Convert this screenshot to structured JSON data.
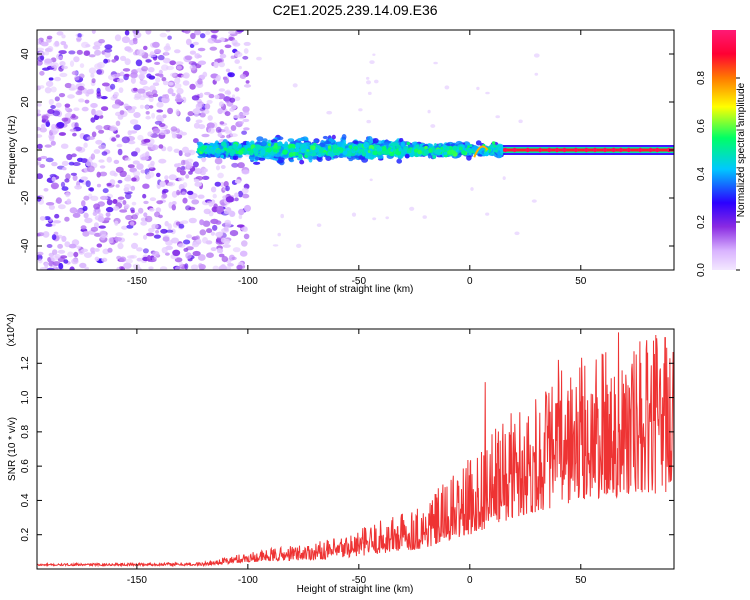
{
  "chart_data": [
    {
      "type": "heatmap",
      "title": "C2E1.2025.239.14.09.E36",
      "xlabel": "Height of straight line (km)",
      "ylabel": "Frequency (Hz)",
      "xlim": [
        -195,
        92
      ],
      "ylim": [
        -50,
        50
      ],
      "xticks": [
        -150,
        -100,
        -50,
        0,
        50
      ],
      "yticks": [
        -40,
        -20,
        0,
        20,
        40
      ],
      "colorbar": {
        "label": "Normalized spectral amplitude",
        "range": [
          0.0,
          1.0
        ],
        "ticks": [
          "0.0",
          "0.2",
          "0.4",
          "0.6",
          "0.8"
        ],
        "colormap": [
          "#f3e8ff",
          "#d9b3ff",
          "#8a2be2",
          "#2b00ff",
          "#00c8ff",
          "#00ff66",
          "#ffff00",
          "#ff7a00",
          "#ff0033",
          "#ff1a75"
        ]
      },
      "regions": [
        {
          "name": "broadband noise",
          "x_range": [
            -195,
            -108
          ],
          "freq_range": [
            -50,
            50
          ],
          "amplitude": "0.05-0.25"
        },
        {
          "name": "signal band",
          "x_range": [
            -122,
            15
          ],
          "freq_range": [
            -8,
            8
          ],
          "amplitude": "0.2-0.55"
        },
        {
          "name": "carrier line",
          "x_range": [
            15,
            92
          ],
          "freq_range": [
            -1,
            1
          ],
          "amplitude": "0.9-1.0"
        }
      ]
    },
    {
      "type": "line",
      "xlabel": "Height of straight line (km)",
      "ylabel": "SNR (10 * v/v)",
      "y_multiplier": "(x10^4)",
      "xlim": [
        -195,
        92
      ],
      "ylim": [
        0,
        1.4
      ],
      "xticks": [
        -150,
        -100,
        -50,
        0,
        50
      ],
      "yticks": [
        0.2,
        0.4,
        0.6,
        0.8,
        1.0,
        1.2
      ],
      "color": "#ee3333",
      "trend": [
        {
          "x": -195,
          "mean": 0.02,
          "spread": 0.01
        },
        {
          "x": -120,
          "mean": 0.02,
          "spread": 0.02
        },
        {
          "x": -100,
          "mean": 0.04,
          "spread": 0.06
        },
        {
          "x": -60,
          "mean": 0.06,
          "spread": 0.12
        },
        {
          "x": -20,
          "mean": 0.12,
          "spread": 0.28
        },
        {
          "x": 0,
          "mean": 0.2,
          "spread": 0.45
        },
        {
          "x": 20,
          "mean": 0.3,
          "spread": 0.65
        },
        {
          "x": 50,
          "mean": 0.4,
          "spread": 0.85
        },
        {
          "x": 92,
          "mean": 0.45,
          "spread": 0.95
        }
      ],
      "peaks": [
        {
          "x": 7,
          "y": 1.09
        },
        {
          "x": 40,
          "y": 1.22
        },
        {
          "x": 67,
          "y": 1.38
        },
        {
          "x": 88,
          "y": 1.35
        }
      ]
    }
  ]
}
